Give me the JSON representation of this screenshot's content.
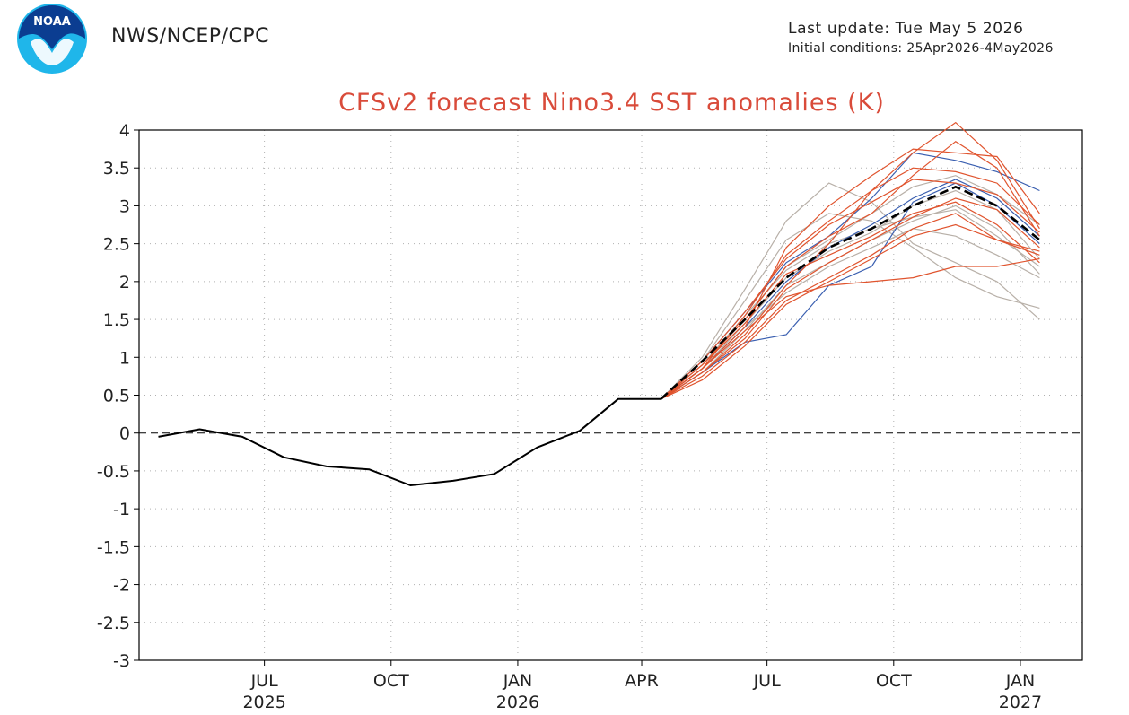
{
  "header": {
    "agency": "NWS/NCEP/CPC",
    "last_update": "Last update: Tue May 5 2026",
    "initial_conditions": "Initial conditions: 25Apr2026-4May2026",
    "logo_text": "NOAA"
  },
  "colors": {
    "title": "#d94b3a",
    "observed": "#000000",
    "ensemble_mean": "#000000",
    "members_red": "#e0542e",
    "members_blue": "#3a5fb0",
    "members_gray": "#b8b0a8"
  },
  "chart_data": {
    "type": "line",
    "title": "CFSv2 forecast Nino3.4 SST anomalies (K)",
    "xlabel": "",
    "ylabel": "",
    "ylim": [
      -3,
      4
    ],
    "yticks": [
      -3,
      -2.5,
      -2,
      -1.5,
      -1,
      -0.5,
      0,
      0.5,
      1,
      1.5,
      2,
      2.5,
      3,
      3.5,
      4
    ],
    "ytick_labels": [
      "-3",
      "-2.5",
      "-2",
      "-1.5",
      "-1",
      "-0.5",
      "0",
      "0.5",
      "1",
      "1.5",
      "2",
      "2.5",
      "3",
      "3.5",
      "4"
    ],
    "xlim": [
      "2025-04-01",
      "2027-02-15"
    ],
    "xticks": [
      {
        "date": "2025-07",
        "label": "JUL",
        "year": "2025"
      },
      {
        "date": "2025-10",
        "label": "OCT",
        "year": ""
      },
      {
        "date": "2026-01",
        "label": "JAN",
        "year": "2026"
      },
      {
        "date": "2026-04",
        "label": "APR",
        "year": ""
      },
      {
        "date": "2026-07",
        "label": "JUL",
        "year": ""
      },
      {
        "date": "2026-10",
        "label": "OCT",
        "year": ""
      },
      {
        "date": "2027-01",
        "label": "JAN",
        "year": "2027"
      }
    ],
    "grid": true,
    "zero_line": "dashed",
    "observed": {
      "x": [
        "2025-04",
        "2025-05",
        "2025-06",
        "2025-07",
        "2025-08",
        "2025-09",
        "2025-10",
        "2025-11",
        "2025-12",
        "2026-01",
        "2026-02",
        "2026-03",
        "2026-04"
      ],
      "values": [
        -0.05,
        0.05,
        -0.05,
        -0.32,
        -0.44,
        -0.48,
        -0.69,
        -0.63,
        -0.54,
        -0.19,
        0.03,
        0.45,
        0.45
      ]
    },
    "forecast_x": [
      "2026-04",
      "2026-05",
      "2026-06",
      "2026-07",
      "2026-08",
      "2026-09",
      "2026-10",
      "2026-11",
      "2026-12",
      "2027-01"
    ],
    "ensemble_mean": [
      0.45,
      0.95,
      1.5,
      2.05,
      2.45,
      2.7,
      3.0,
      3.25,
      3.0,
      2.55
    ],
    "members": [
      {
        "color": "red",
        "values": [
          0.45,
          0.85,
          1.4,
          2.45,
          3.0,
          3.4,
          3.75,
          3.7,
          3.65,
          2.9
        ]
      },
      {
        "color": "red",
        "values": [
          0.45,
          0.8,
          1.3,
          1.95,
          2.5,
          3.2,
          3.7,
          4.1,
          3.6,
          2.7
        ]
      },
      {
        "color": "red",
        "values": [
          0.45,
          0.9,
          1.5,
          2.2,
          2.6,
          2.9,
          3.4,
          3.85,
          3.5,
          2.6
        ]
      },
      {
        "color": "red",
        "values": [
          0.45,
          0.85,
          1.35,
          1.8,
          1.95,
          2.0,
          2.05,
          2.2,
          2.2,
          2.3
        ]
      },
      {
        "color": "red",
        "values": [
          0.45,
          0.75,
          1.2,
          1.75,
          2.05,
          2.35,
          2.7,
          2.9,
          2.55,
          2.4
        ]
      },
      {
        "color": "red",
        "values": [
          0.45,
          0.95,
          1.6,
          2.3,
          2.75,
          3.05,
          3.35,
          3.3,
          3.15,
          2.65
        ]
      },
      {
        "color": "red",
        "values": [
          0.45,
          0.8,
          1.25,
          1.9,
          2.25,
          2.55,
          2.85,
          3.1,
          2.95,
          2.45
        ]
      },
      {
        "color": "red",
        "values": [
          0.45,
          0.9,
          1.45,
          2.1,
          2.35,
          2.6,
          2.9,
          3.05,
          2.75,
          2.25
        ]
      },
      {
        "color": "red",
        "values": [
          0.45,
          0.85,
          1.55,
          2.35,
          2.8,
          3.2,
          3.5,
          3.45,
          3.3,
          2.75
        ]
      },
      {
        "color": "red",
        "values": [
          0.45,
          0.7,
          1.15,
          1.7,
          2.0,
          2.3,
          2.6,
          2.75,
          2.55,
          2.35
        ]
      },
      {
        "color": "blue",
        "values": [
          0.45,
          0.8,
          1.2,
          1.3,
          1.95,
          2.2,
          3.05,
          3.3,
          3.0,
          2.5
        ]
      },
      {
        "color": "blue",
        "values": [
          0.45,
          0.95,
          1.6,
          2.25,
          2.6,
          3.1,
          3.7,
          3.6,
          3.45,
          3.2
        ]
      },
      {
        "color": "blue",
        "values": [
          0.45,
          0.85,
          1.4,
          2.0,
          2.45,
          2.75,
          3.1,
          3.35,
          3.1,
          2.6
        ]
      },
      {
        "color": "gray",
        "values": [
          0.45,
          1.0,
          1.9,
          2.8,
          3.3,
          3.05,
          2.5,
          2.25,
          2.0,
          1.5
        ]
      },
      {
        "color": "gray",
        "values": [
          0.45,
          0.95,
          1.75,
          2.55,
          2.9,
          2.8,
          2.45,
          2.05,
          1.8,
          1.65
        ]
      },
      {
        "color": "gray",
        "values": [
          0.45,
          0.9,
          1.55,
          2.15,
          2.5,
          2.7,
          2.85,
          2.95,
          2.6,
          2.2
        ]
      },
      {
        "color": "gray",
        "values": [
          0.45,
          0.85,
          1.45,
          2.05,
          2.4,
          2.65,
          3.0,
          3.2,
          2.95,
          2.3
        ]
      },
      {
        "color": "gray",
        "values": [
          0.45,
          0.8,
          1.35,
          1.95,
          2.25,
          2.55,
          2.8,
          3.0,
          2.7,
          2.1
        ]
      },
      {
        "color": "gray",
        "values": [
          0.45,
          0.9,
          1.5,
          2.2,
          2.55,
          2.9,
          3.25,
          3.4,
          3.15,
          2.75
        ]
      },
      {
        "color": "gray",
        "values": [
          0.45,
          0.85,
          1.4,
          1.85,
          2.2,
          2.45,
          2.7,
          2.6,
          2.35,
          2.05
        ]
      }
    ]
  }
}
